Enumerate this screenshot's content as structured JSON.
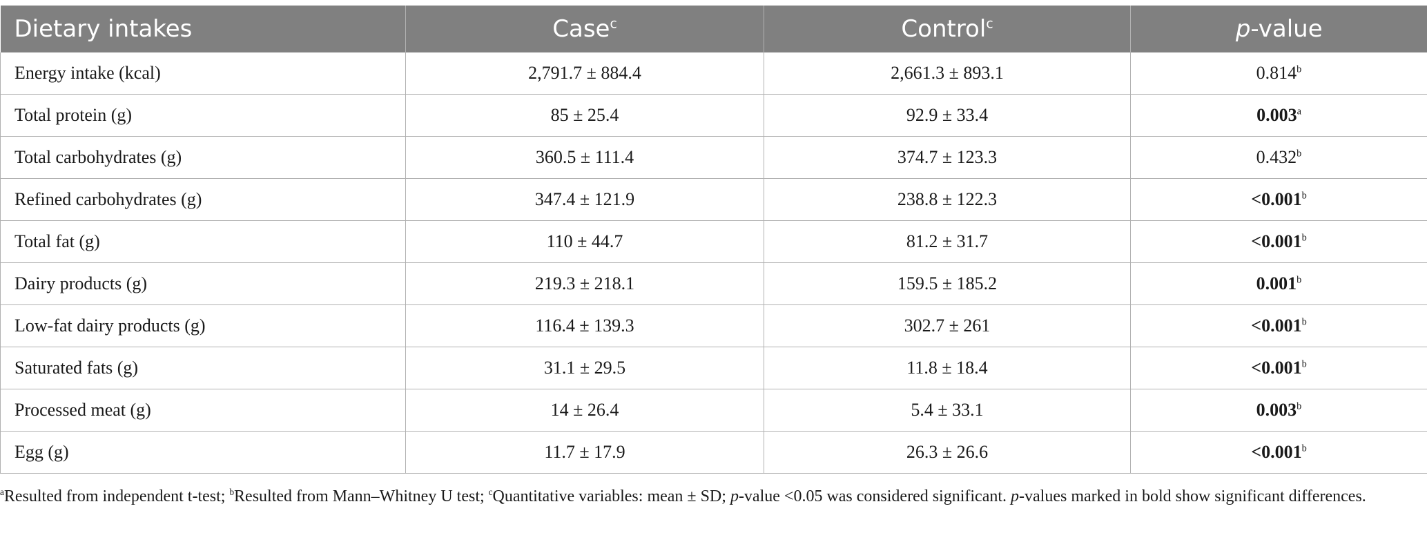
{
  "table": {
    "headers": {
      "col1": "Dietary intakes",
      "col2": "Case",
      "col2_sup": "c",
      "col3": "Control",
      "col3_sup": "c",
      "col4_italic": "p",
      "col4_rest": "-value"
    },
    "rows": [
      {
        "label": "Energy intake (kcal)",
        "case": "2,791.7 ± 884.4",
        "control": "2,661.3 ± 893.1",
        "p": "0.814",
        "p_sup": "b",
        "p_bold": false
      },
      {
        "label": "Total protein (g)",
        "case": "85 ± 25.4",
        "control": "92.9 ± 33.4",
        "p": "0.003",
        "p_sup": "a",
        "p_bold": true
      },
      {
        "label": "Total carbohydrates (g)",
        "case": "360.5 ± 111.4",
        "control": "374.7 ± 123.3",
        "p": "0.432",
        "p_sup": "b",
        "p_bold": false
      },
      {
        "label": "Refined carbohydrates (g)",
        "case": "347.4 ± 121.9",
        "control": "238.8 ± 122.3",
        "p": "<0.001",
        "p_sup": "b",
        "p_bold": true
      },
      {
        "label": "Total fat (g)",
        "case": "110 ± 44.7",
        "control": "81.2 ± 31.7",
        "p": "<0.001",
        "p_sup": "b",
        "p_bold": true
      },
      {
        "label": "Dairy products (g)",
        "case": "219.3 ± 218.1",
        "control": "159.5 ± 185.2",
        "p": "0.001",
        "p_sup": "b",
        "p_bold": true
      },
      {
        "label": "Low-fat dairy products (g)",
        "case": "116.4 ± 139.3",
        "control": "302.7 ± 261",
        "p": "<0.001",
        "p_sup": "b",
        "p_bold": true
      },
      {
        "label": "Saturated fats (g)",
        "case": "31.1 ± 29.5",
        "control": "11.8 ± 18.4",
        "p": "<0.001",
        "p_sup": "b",
        "p_bold": true
      },
      {
        "label": "Processed meat (g)",
        "case": "14 ± 26.4",
        "control": "5.4 ± 33.1",
        "p": "0.003",
        "p_sup": "b",
        "p_bold": true
      },
      {
        "label": "Egg (g)",
        "case": "11.7 ± 17.9",
        "control": "26.3 ± 26.6",
        "p": "<0.001",
        "p_sup": "b",
        "p_bold": true
      }
    ]
  },
  "footnote": {
    "a_sup": "a",
    "a_text": "Resulted from independent t-test; ",
    "b_sup": "b",
    "b_text": "Resulted from Mann–Whitney U test; ",
    "c_sup": "c",
    "c_text": "Quantitative variables: mean ± SD; ",
    "p1_italic": "p",
    "p1_text": "-value <0.05 was considered significant. ",
    "p2_italic": "p",
    "p2_text": "-values marked in bold show significant differences."
  }
}
